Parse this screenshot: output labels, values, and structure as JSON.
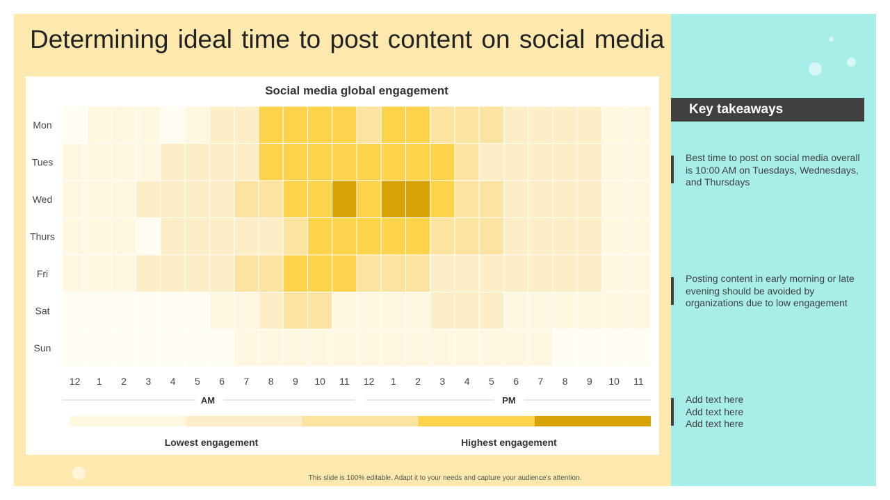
{
  "slide": {
    "title": "Determining ideal time to post content on social media",
    "footer": "This slide is 100% editable. Adapt it to your needs and capture your audience's attention."
  },
  "takeaways": {
    "header": "Key takeaways",
    "items": [
      "Best time to post on social media overall is 10:00 AM on Tuesdays, Wednesdays, and Thursdays",
      "Posting content in early morning or late evening should be avoided by organizations due to low engagement"
    ],
    "placeholder_lines": [
      "Add text here",
      "Add text here",
      "Add text here"
    ]
  },
  "chart_data": {
    "type": "heatmap",
    "title": "Social media global engagement",
    "rows": [
      "Mon",
      "Tues",
      "Wed",
      "Thurs",
      "Fri",
      "Sat",
      "Sun"
    ],
    "columns": [
      "12",
      "1",
      "2",
      "3",
      "4",
      "5",
      "6",
      "7",
      "8",
      "9",
      "10",
      "11",
      "12",
      "1",
      "2",
      "3",
      "4",
      "5",
      "6",
      "7",
      "8",
      "9",
      "10",
      "11"
    ],
    "period_labels": [
      "AM",
      "PM"
    ],
    "values": [
      [
        0,
        1,
        1,
        1,
        0,
        1,
        2,
        2,
        4,
        4,
        4,
        4,
        3,
        4,
        4,
        3,
        3,
        3,
        2,
        2,
        2,
        2,
        1,
        1
      ],
      [
        1,
        1,
        1,
        1,
        2,
        2,
        2,
        2,
        4,
        4,
        4,
        4,
        4,
        4,
        4,
        4,
        3,
        2,
        2,
        2,
        2,
        2,
        1,
        1
      ],
      [
        1,
        1,
        1,
        2,
        2,
        2,
        2,
        3,
        3,
        4,
        4,
        5,
        4,
        5,
        5,
        4,
        3,
        3,
        2,
        2,
        2,
        2,
        1,
        1
      ],
      [
        1,
        1,
        1,
        0,
        2,
        2,
        2,
        2,
        2,
        3,
        4,
        4,
        4,
        4,
        4,
        3,
        3,
        3,
        2,
        2,
        2,
        2,
        1,
        1
      ],
      [
        1,
        1,
        1,
        2,
        2,
        2,
        2,
        3,
        3,
        4,
        4,
        4,
        3,
        3,
        3,
        2,
        2,
        2,
        2,
        2,
        2,
        2,
        1,
        1
      ],
      [
        0,
        0,
        0,
        0,
        0,
        0,
        1,
        1,
        2,
        3,
        3,
        1,
        1,
        1,
        1,
        2,
        2,
        2,
        1,
        1,
        1,
        1,
        1,
        1
      ],
      [
        0,
        0,
        0,
        0,
        0,
        0,
        0,
        1,
        1,
        1,
        1,
        1,
        1,
        1,
        1,
        1,
        1,
        1,
        1,
        1,
        0,
        0,
        0,
        0
      ]
    ],
    "scale": {
      "levels": [
        "#fffcf2",
        "#fff7e0",
        "#fdeec7",
        "#fce4a0",
        "#fcd34a",
        "#d6a206"
      ],
      "legend_levels": [
        1,
        2,
        3,
        4,
        5
      ],
      "min_label": "Lowest engagement",
      "max_label": "Highest engagement"
    }
  }
}
